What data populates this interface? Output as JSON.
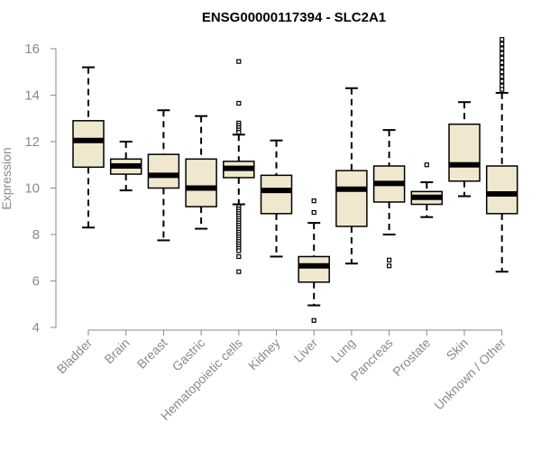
{
  "chart_data": {
    "type": "box",
    "title": "ENSG00000117394 - SLC2A1",
    "xlabel": "",
    "ylabel": "Expression",
    "ylim": [
      4,
      16
    ],
    "yticks": [
      4,
      6,
      8,
      10,
      12,
      14,
      16
    ],
    "colors": {
      "box_fill": "#EFE8CF",
      "box_stroke": "#000000",
      "axis": "#8a8a8a"
    },
    "categories": [
      "Bladder",
      "Brain",
      "Breast",
      "Gastric",
      "Hematopoietic cells",
      "Kidney",
      "Liver",
      "Lung",
      "Pancreas",
      "Prostate",
      "Skin",
      "Unknown / Other"
    ],
    "boxes": [
      {
        "category": "Bladder",
        "whisker_low": 8.3,
        "q1": 10.9,
        "median": 12.05,
        "q3": 12.9,
        "whisker_high": 15.2,
        "outliers": []
      },
      {
        "category": "Brain",
        "whisker_low": 9.9,
        "q1": 10.6,
        "median": 10.95,
        "q3": 11.25,
        "whisker_high": 12.0,
        "outliers": []
      },
      {
        "category": "Breast",
        "whisker_low": 7.75,
        "q1": 10.0,
        "median": 10.55,
        "q3": 11.45,
        "whisker_high": 13.35,
        "outliers": []
      },
      {
        "category": "Gastric",
        "whisker_low": 8.25,
        "q1": 9.2,
        "median": 10.0,
        "q3": 11.25,
        "whisker_high": 13.1,
        "outliers": []
      },
      {
        "category": "Hematopoietic cells",
        "whisker_low": 9.3,
        "q1": 10.45,
        "median": 10.85,
        "q3": 11.15,
        "whisker_high": 12.3,
        "outliers": [
          15.45,
          13.65,
          12.8,
          12.7,
          12.6,
          12.5,
          12.4,
          9.2,
          9.1,
          9.0,
          8.9,
          8.8,
          8.7,
          8.6,
          8.5,
          8.4,
          8.3,
          8.2,
          8.1,
          8.0,
          7.9,
          7.8,
          7.7,
          7.6,
          7.5,
          7.4,
          7.3,
          7.05,
          6.4
        ]
      },
      {
        "category": "Kidney",
        "whisker_low": 7.05,
        "q1": 8.9,
        "median": 9.9,
        "q3": 10.55,
        "whisker_high": 12.05,
        "outliers": []
      },
      {
        "category": "Liver",
        "whisker_low": 4.95,
        "q1": 5.95,
        "median": 6.65,
        "q3": 7.05,
        "whisker_high": 8.5,
        "outliers": [
          9.45,
          8.95,
          4.3
        ]
      },
      {
        "category": "Lung",
        "whisker_low": 6.75,
        "q1": 8.35,
        "median": 9.95,
        "q3": 10.75,
        "whisker_high": 14.3,
        "outliers": []
      },
      {
        "category": "Pancreas",
        "whisker_low": 8.0,
        "q1": 9.4,
        "median": 10.2,
        "q3": 10.95,
        "whisker_high": 12.5,
        "outliers": [
          6.9,
          6.65
        ]
      },
      {
        "category": "Prostate",
        "whisker_low": 8.75,
        "q1": 9.3,
        "median": 9.6,
        "q3": 9.85,
        "whisker_high": 10.25,
        "outliers": [
          11.0
        ]
      },
      {
        "category": "Skin",
        "whisker_low": 9.65,
        "q1": 10.3,
        "median": 11.0,
        "q3": 12.75,
        "whisker_high": 13.7,
        "outliers": []
      },
      {
        "category": "Unknown / Other",
        "whisker_low": 6.4,
        "q1": 8.9,
        "median": 9.75,
        "q3": 10.95,
        "whisker_high": 14.1,
        "outliers": [
          16.4,
          16.2,
          16.0,
          15.8,
          15.6,
          15.4,
          15.2,
          15.0,
          14.8,
          14.6,
          14.4,
          14.25
        ]
      }
    ]
  }
}
